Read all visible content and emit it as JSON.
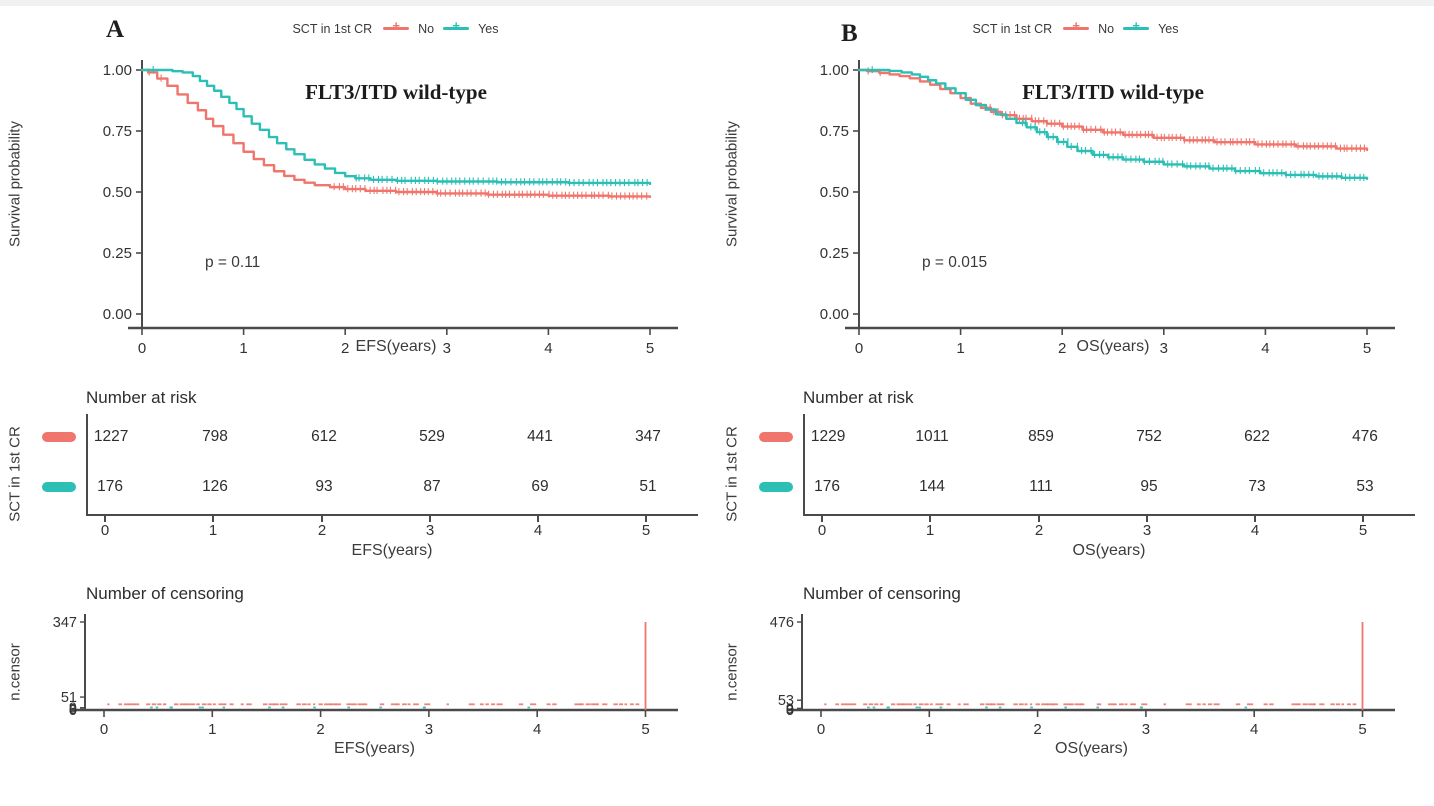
{
  "chart_data": {
    "type": "line",
    "subtype": "kaplan-meier-survival",
    "legend": {
      "title": "SCT in 1st CR",
      "items": [
        {
          "label": "No",
          "color": "#F0756C"
        },
        {
          "label": "Yes",
          "color": "#2BBFB5"
        }
      ]
    },
    "risk_table": {
      "title": "Number at risk",
      "group_label": "SCT in 1st CR"
    },
    "censor_plot": {
      "title": "Number of censoring",
      "ylabel": "n.censor"
    },
    "panels": [
      {
        "letter": "A",
        "km": {
          "title": "FLT3/ITD wild-type",
          "pvalue": "p = 0.11",
          "xlabel": "EFS(years)",
          "ylabel": "Survival probability",
          "xlim": [
            0,
            5
          ],
          "ylim": [
            0,
            1
          ],
          "xticks": [
            "0",
            "1",
            "2",
            "3",
            "4",
            "5"
          ],
          "yticks": [
            {
              "v": 1,
              "label": "1.00"
            },
            {
              "v": 0.75,
              "label": "0.75"
            },
            {
              "v": 0.5,
              "label": "0.50"
            },
            {
              "v": 0.25,
              "label": "0.25"
            },
            {
              "v": 0,
              "label": "0.00"
            }
          ],
          "series": [
            {
              "name": "No",
              "color": "#F0756C",
              "points": [
                [
                  0,
                  1
                ],
                [
                  0.06,
                  0.99
                ],
                [
                  0.15,
                  0.965
                ],
                [
                  0.25,
                  0.935
                ],
                [
                  0.35,
                  0.9
                ],
                [
                  0.45,
                  0.865
                ],
                [
                  0.55,
                  0.835
                ],
                [
                  0.63,
                  0.8
                ],
                [
                  0.7,
                  0.77
                ],
                [
                  0.8,
                  0.735
                ],
                [
                  0.9,
                  0.7
                ],
                [
                  1.0,
                  0.665
                ],
                [
                  1.1,
                  0.635
                ],
                [
                  1.2,
                  0.61
                ],
                [
                  1.3,
                  0.585
                ],
                [
                  1.4,
                  0.566
                ],
                [
                  1.5,
                  0.55
                ],
                [
                  1.6,
                  0.538
                ],
                [
                  1.7,
                  0.528
                ],
                [
                  1.85,
                  0.52
                ],
                [
                  2.0,
                  0.512
                ],
                [
                  2.2,
                  0.505
                ],
                [
                  2.5,
                  0.5
                ],
                [
                  2.9,
                  0.494
                ],
                [
                  3.4,
                  0.489
                ],
                [
                  4.0,
                  0.485
                ],
                [
                  4.6,
                  0.482
                ],
                [
                  5,
                  0.48
                ]
              ],
              "marks": {
                "from": 1.9,
                "to": 5,
                "step": 0.042
              },
              "early_marks": [
                0.08,
                0.18
              ]
            },
            {
              "name": "Yes",
              "color": "#2BBFB5",
              "points": [
                [
                  0,
                  1
                ],
                [
                  0.3,
                  0.995
                ],
                [
                  0.4,
                  0.99
                ],
                [
                  0.5,
                  0.975
                ],
                [
                  0.57,
                  0.955
                ],
                [
                  0.64,
                  0.935
                ],
                [
                  0.71,
                  0.915
                ],
                [
                  0.78,
                  0.89
                ],
                [
                  0.86,
                  0.865
                ],
                [
                  0.93,
                  0.84
                ],
                [
                  1.0,
                  0.81
                ],
                [
                  1.08,
                  0.78
                ],
                [
                  1.16,
                  0.755
                ],
                [
                  1.25,
                  0.725
                ],
                [
                  1.33,
                  0.7
                ],
                [
                  1.42,
                  0.675
                ],
                [
                  1.5,
                  0.655
                ],
                [
                  1.6,
                  0.632
                ],
                [
                  1.7,
                  0.613
                ],
                [
                  1.8,
                  0.596
                ],
                [
                  1.9,
                  0.578
                ],
                [
                  2.0,
                  0.565
                ],
                [
                  2.1,
                  0.556
                ],
                [
                  2.25,
                  0.55
                ],
                [
                  2.5,
                  0.546
                ],
                [
                  2.9,
                  0.543
                ],
                [
                  3.5,
                  0.54
                ],
                [
                  4.2,
                  0.537
                ],
                [
                  5,
                  0.533
                ]
              ],
              "marks": {
                "from": 2.1,
                "to": 5,
                "step": 0.045
              },
              "early_marks": [
                0.12
              ]
            }
          ]
        },
        "risk": {
          "rows": [
            {
              "name": "No",
              "color": "#F0756C",
              "values": [
                "1227",
                "798",
                "612",
                "529",
                "441",
                "347"
              ]
            },
            {
              "name": "Yes",
              "color": "#2BBFB5",
              "values": [
                "176",
                "126",
                "93",
                "87",
                "69",
                "51"
              ]
            }
          ]
        },
        "censor": {
          "ymax": 347,
          "yticks": [
            {
              "v": 347,
              "label": "347"
            },
            {
              "v": 51,
              "label": "51"
            },
            {
              "v": 9,
              "label": "9"
            },
            {
              "v": 3,
              "label": "3"
            },
            {
              "v": 0,
              "label": "0"
            }
          ],
          "spike": {
            "x": 5,
            "value": 347,
            "color": "#F0756C"
          }
        }
      },
      {
        "letter": "B",
        "km": {
          "title": "FLT3/ITD wild-type",
          "pvalue": "p = 0.015",
          "xlabel": "OS(years)",
          "ylabel": "Survival probability",
          "xlim": [
            0,
            5
          ],
          "ylim": [
            0,
            1
          ],
          "xticks": [
            "0",
            "1",
            "2",
            "3",
            "4",
            "5"
          ],
          "yticks": [
            {
              "v": 1,
              "label": "1.00"
            },
            {
              "v": 0.75,
              "label": "0.75"
            },
            {
              "v": 0.5,
              "label": "0.50"
            },
            {
              "v": 0.25,
              "label": "0.25"
            },
            {
              "v": 0,
              "label": "0.00"
            }
          ],
          "series": [
            {
              "name": "No",
              "color": "#F0756C",
              "points": [
                [
                  0,
                  1
                ],
                [
                  0.08,
                  0.995
                ],
                [
                  0.2,
                  0.988
                ],
                [
                  0.3,
                  0.982
                ],
                [
                  0.4,
                  0.975
                ],
                [
                  0.5,
                  0.966
                ],
                [
                  0.6,
                  0.953
                ],
                [
                  0.7,
                  0.94
                ],
                [
                  0.8,
                  0.922
                ],
                [
                  0.9,
                  0.905
                ],
                [
                  1.0,
                  0.885
                ],
                [
                  1.1,
                  0.862
                ],
                [
                  1.2,
                  0.845
                ],
                [
                  1.3,
                  0.828
                ],
                [
                  1.4,
                  0.815
                ],
                [
                  1.55,
                  0.8
                ],
                [
                  1.7,
                  0.79
                ],
                [
                  1.85,
                  0.78
                ],
                [
                  2.0,
                  0.768
                ],
                [
                  2.2,
                  0.755
                ],
                [
                  2.4,
                  0.744
                ],
                [
                  2.6,
                  0.734
                ],
                [
                  2.9,
                  0.722
                ],
                [
                  3.2,
                  0.712
                ],
                [
                  3.5,
                  0.704
                ],
                [
                  3.9,
                  0.695
                ],
                [
                  4.3,
                  0.687
                ],
                [
                  4.7,
                  0.678
                ],
                [
                  5,
                  0.672
                ]
              ],
              "marks": {
                "from": 1.25,
                "to": 5,
                "step": 0.04
              },
              "early_marks": [
                0.1,
                0.2
              ]
            },
            {
              "name": "Yes",
              "color": "#2BBFB5",
              "points": [
                [
                  0,
                  1
                ],
                [
                  0.3,
                  0.996
                ],
                [
                  0.42,
                  0.99
                ],
                [
                  0.52,
                  0.982
                ],
                [
                  0.6,
                  0.972
                ],
                [
                  0.68,
                  0.958
                ],
                [
                  0.76,
                  0.945
                ],
                [
                  0.85,
                  0.925
                ],
                [
                  0.95,
                  0.905
                ],
                [
                  1.05,
                  0.878
                ],
                [
                  1.15,
                  0.856
                ],
                [
                  1.25,
                  0.838
                ],
                [
                  1.35,
                  0.818
                ],
                [
                  1.45,
                  0.8
                ],
                [
                  1.55,
                  0.783
                ],
                [
                  1.65,
                  0.765
                ],
                [
                  1.75,
                  0.745
                ],
                [
                  1.85,
                  0.725
                ],
                [
                  1.95,
                  0.705
                ],
                [
                  2.05,
                  0.685
                ],
                [
                  2.15,
                  0.668
                ],
                [
                  2.3,
                  0.652
                ],
                [
                  2.45,
                  0.642
                ],
                [
                  2.6,
                  0.633
                ],
                [
                  2.8,
                  0.624
                ],
                [
                  3.0,
                  0.613
                ],
                [
                  3.2,
                  0.605
                ],
                [
                  3.45,
                  0.596
                ],
                [
                  3.7,
                  0.586
                ],
                [
                  3.95,
                  0.577
                ],
                [
                  4.2,
                  0.57
                ],
                [
                  4.5,
                  0.564
                ],
                [
                  4.75,
                  0.558
                ],
                [
                  5,
                  0.554
                ]
              ],
              "marks": {
                "from": 1.6,
                "to": 5,
                "step": 0.045
              },
              "early_marks": [
                0.14
              ]
            }
          ]
        },
        "risk": {
          "rows": [
            {
              "name": "No",
              "color": "#F0756C",
              "values": [
                "1229",
                "1011",
                "859",
                "752",
                "622",
                "476"
              ]
            },
            {
              "name": "Yes",
              "color": "#2BBFB5",
              "values": [
                "176",
                "144",
                "111",
                "95",
                "73",
                "53"
              ]
            }
          ]
        },
        "censor": {
          "ymax": 476,
          "yticks": [
            {
              "v": 476,
              "label": "476"
            },
            {
              "v": 53,
              "label": "53"
            },
            {
              "v": 9,
              "label": "9"
            },
            {
              "v": 3,
              "label": "3"
            },
            {
              "v": 0,
              "label": "0"
            }
          ],
          "spike": {
            "x": 5,
            "value": 476,
            "color": "#F0756C"
          }
        }
      }
    ]
  }
}
